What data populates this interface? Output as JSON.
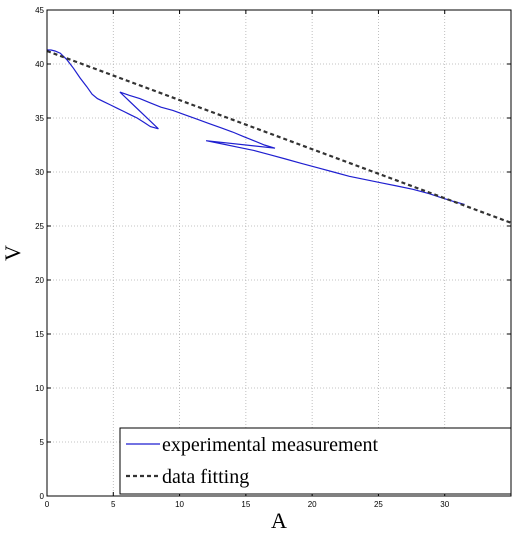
{
  "chart_data": {
    "type": "line",
    "title": "",
    "xlabel": "A",
    "ylabel": "V",
    "xlim": [
      0,
      35
    ],
    "ylim": [
      0,
      45
    ],
    "grid": true,
    "x_ticks": [
      0,
      5,
      10,
      15,
      20,
      25,
      30
    ],
    "x_tick_labels": [
      "0",
      "5",
      "10",
      "15",
      "20",
      "25",
      "30"
    ],
    "y_ticks": [
      0,
      5,
      10,
      15,
      20,
      25,
      30,
      35,
      40,
      45
    ],
    "y_tick_labels": [
      "0",
      "5",
      "10",
      "15",
      "20",
      "25",
      "30",
      "35",
      "40",
      "45"
    ],
    "legend": {
      "position": "bottom-right"
    },
    "series": [
      {
        "name": "experimental measurement",
        "color": "#1f1fd0",
        "style": "solid",
        "x": [
          0,
          0.3,
          0.6,
          1.0,
          1.5,
          2.0,
          2.5,
          3.0,
          3.4,
          3.8,
          4.3,
          4.8,
          5.3,
          5.8,
          6.3,
          6.8,
          7.3,
          7.8,
          8.4,
          5.5,
          6.2,
          7.0,
          7.8,
          8.6,
          9.5,
          10.4,
          11.3,
          12.2,
          13.1,
          14.0,
          14.8,
          15.6,
          16.4,
          17.2,
          12.0,
          13.2,
          14.4,
          15.6,
          16.8,
          18.0,
          19.2,
          20.4,
          21.6,
          22.8,
          24.0,
          25.2,
          26.4,
          27.6,
          28.8,
          29.8,
          30.6,
          31.5
        ],
        "y": [
          41.3,
          41.3,
          41.2,
          41.0,
          40.4,
          39.6,
          38.7,
          37.9,
          37.2,
          36.8,
          36.5,
          36.2,
          35.9,
          35.6,
          35.3,
          35.0,
          34.6,
          34.2,
          34.0,
          37.4,
          37.1,
          36.8,
          36.4,
          36.0,
          35.7,
          35.3,
          34.9,
          34.5,
          34.1,
          33.7,
          33.3,
          32.9,
          32.5,
          32.2,
          32.9,
          32.6,
          32.3,
          32.0,
          31.6,
          31.2,
          30.8,
          30.4,
          30.0,
          29.6,
          29.3,
          29.0,
          28.7,
          28.4,
          28.0,
          27.6,
          27.3,
          27.0
        ]
      },
      {
        "name": "data fitting",
        "color": "#333333",
        "style": "dashed",
        "x": [
          0,
          35
        ],
        "y": [
          41.2,
          25.3
        ]
      }
    ]
  }
}
